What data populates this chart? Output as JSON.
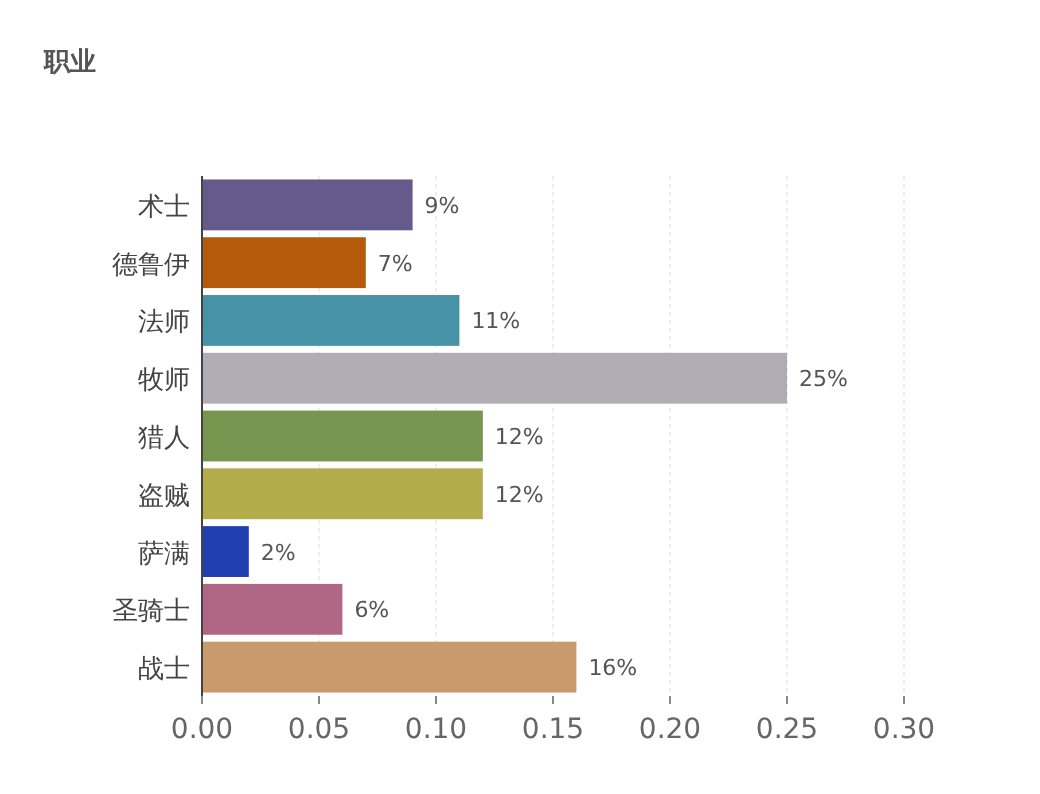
{
  "chart_data": {
    "type": "bar",
    "orientation": "horizontal",
    "title": "职业",
    "categories": [
      "术士",
      "德鲁伊",
      "法师",
      "牧师",
      "猎人",
      "盗贼",
      "萨满",
      "圣骑士",
      "战士"
    ],
    "values": [
      0.09,
      0.07,
      0.11,
      0.25,
      0.12,
      0.12,
      0.02,
      0.06,
      0.16
    ],
    "colors": [
      "#655a8c",
      "#b55a0a",
      "#4892a8",
      "#b0aeb4",
      "#77954e",
      "#b3ac4b",
      "#1f3fb0",
      "#b06785",
      "#c99b6c"
    ],
    "value_labels": [
      "9%",
      "7%",
      "11%",
      "25%",
      "12%",
      "12%",
      "2%",
      "6%",
      "16%"
    ],
    "xlim": [
      0,
      0.3
    ],
    "xticks": [
      {
        "value": 0,
        "label": "0.00"
      },
      {
        "value": 0.05,
        "label": "0.05"
      },
      {
        "value": 0.1,
        "label": "0.10"
      },
      {
        "value": 0.15,
        "label": "0.15"
      },
      {
        "value": 0.2,
        "label": "0.20"
      },
      {
        "value": 0.25,
        "label": "0.25"
      },
      {
        "value": 0.3,
        "label": "0.30"
      }
    ],
    "grid": "x"
  }
}
